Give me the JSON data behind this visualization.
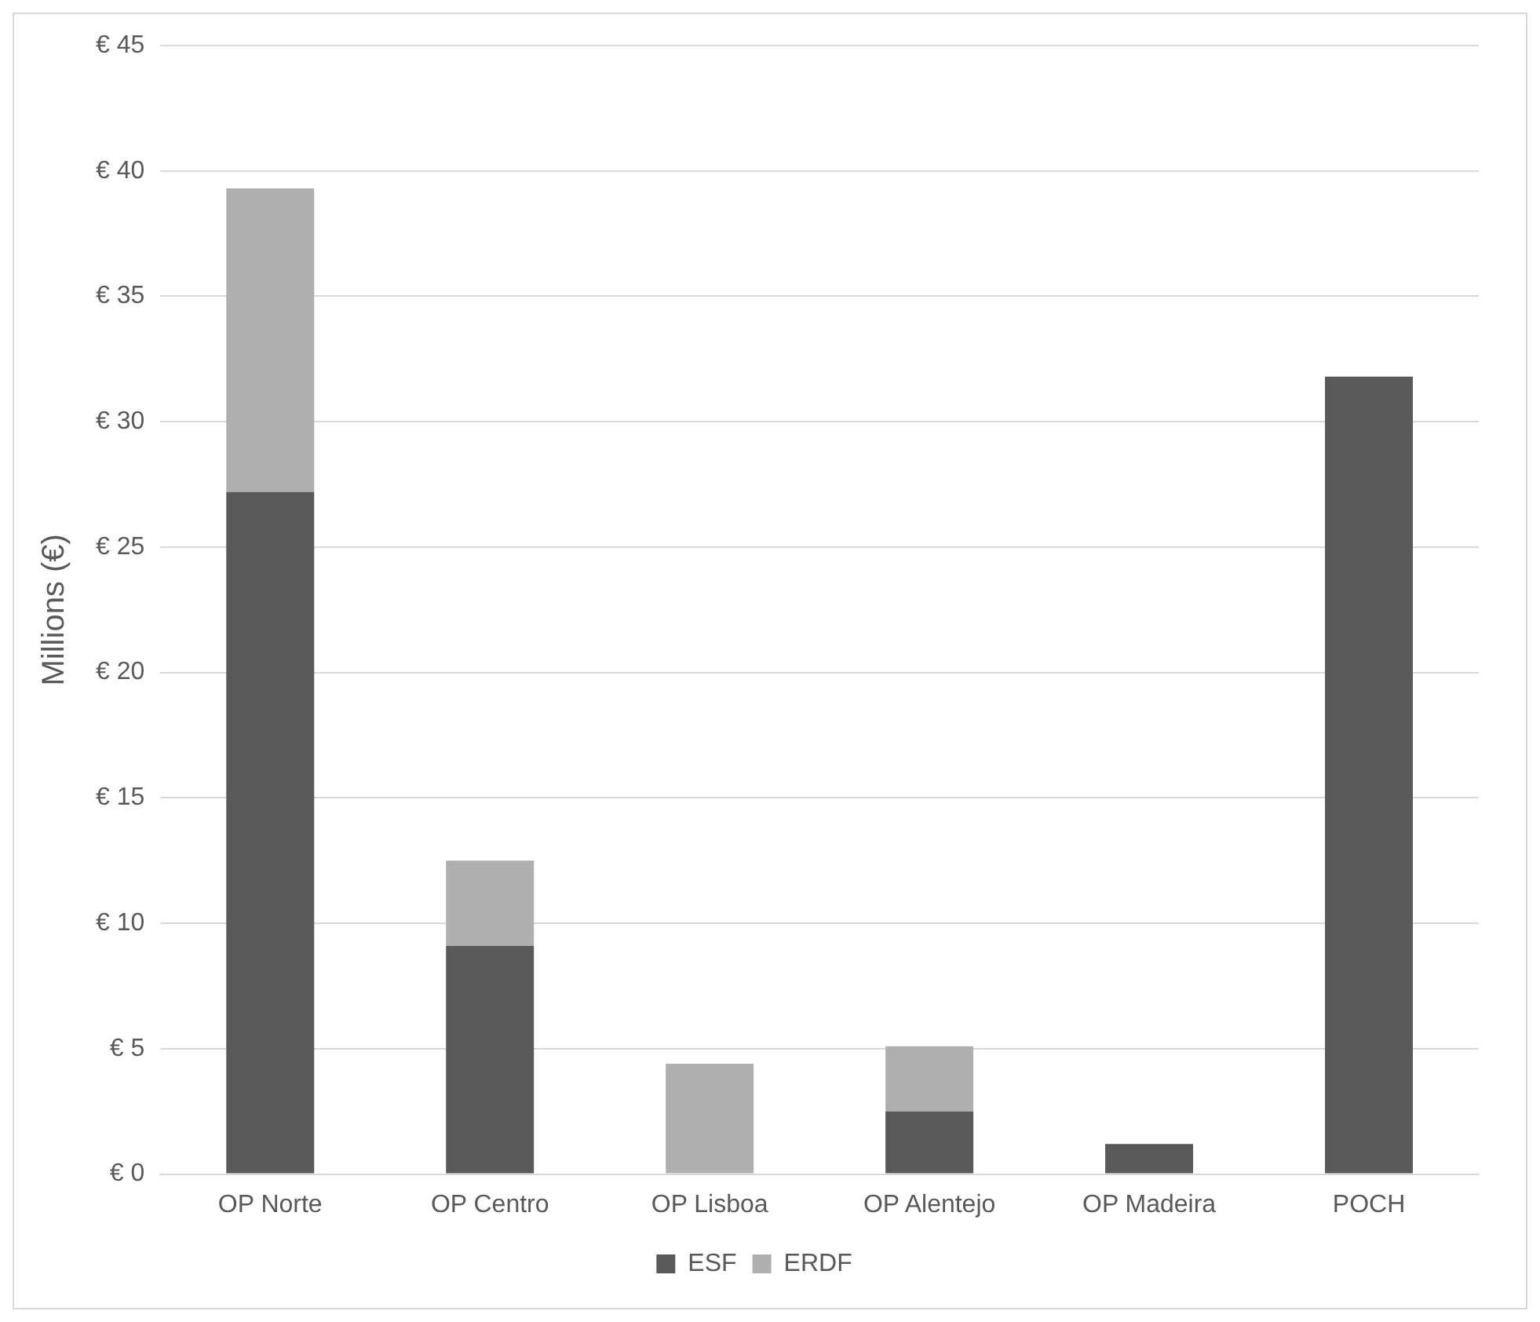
{
  "chart_data": {
    "type": "bar",
    "stacked": true,
    "ylabel": "Millions (€)",
    "categories": [
      "OP Norte",
      "OP Centro",
      "OP Lisboa",
      "OP Alentejo",
      "OP Madeira",
      "POCH"
    ],
    "series": [
      {
        "name": "ESF",
        "color": "#595959",
        "values": [
          27.2,
          9.1,
          null,
          2.5,
          1.2,
          31.8
        ]
      },
      {
        "name": "ERDF",
        "color": "#afafaf",
        "values": [
          12.1,
          3.4,
          4.4,
          2.6,
          null,
          null
        ]
      }
    ],
    "ylim": [
      0,
      45
    ],
    "yticks": [
      {
        "value": 0,
        "label": "€ 0"
      },
      {
        "value": 5,
        "label": "€ 5"
      },
      {
        "value": 10,
        "label": "€ 10"
      },
      {
        "value": 15,
        "label": "€ 15"
      },
      {
        "value": 20,
        "label": "€ 20"
      },
      {
        "value": 25,
        "label": "€ 25"
      },
      {
        "value": 30,
        "label": "€ 30"
      },
      {
        "value": 35,
        "label": "€ 35"
      },
      {
        "value": 40,
        "label": "€ 40"
      },
      {
        "value": 45,
        "label": "€ 45"
      }
    ],
    "grid": "y",
    "legend": "bottom"
  }
}
